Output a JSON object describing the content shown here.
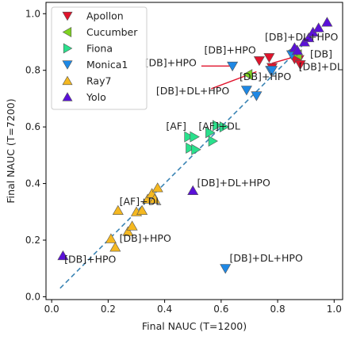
{
  "chart_data": {
    "type": "scatter",
    "title": "",
    "xlabel": "Final NAUC (T=1200)",
    "ylabel": "Final NAUC (T=7200)",
    "xlim": [
      -0.02,
      1.03
    ],
    "ylim": [
      -0.01,
      1.04
    ],
    "xticks": [
      0.0,
      0.2,
      0.4,
      0.6,
      0.8,
      1.0
    ],
    "yticks": [
      0.0,
      0.2,
      0.4,
      0.6,
      0.8,
      1.0
    ],
    "xtick_labels": [
      "0.0",
      "0.2",
      "0.4",
      "0.6",
      "0.8",
      "1.0"
    ],
    "ytick_labels": [
      "0.0",
      "0.2",
      "0.4",
      "0.6",
      "0.8",
      "1.0"
    ],
    "grid": false,
    "legend_position": "top-left",
    "reference_line": {
      "x": [
        0.03,
        0.98
      ],
      "y": [
        0.03,
        0.98
      ],
      "style": "dashed",
      "color": "#3a84b4"
    },
    "series": [
      {
        "name": "Apollon",
        "marker": "triangle-down",
        "color": "#e0142c",
        "points": [
          [
            0.735,
            0.834
          ],
          [
            0.77,
            0.845
          ],
          [
            0.875,
            0.838
          ],
          [
            0.86,
            0.84
          ],
          [
            0.88,
            0.82
          ],
          [
            0.78,
            0.81
          ]
        ]
      },
      {
        "name": "Cucumber",
        "marker": "triangle-left",
        "color": "#7ed321",
        "points": [
          [
            0.695,
            0.785
          ],
          [
            0.87,
            0.855
          ],
          [
            0.855,
            0.87
          ]
        ]
      },
      {
        "name": "Fiona",
        "marker": "triangle-right",
        "color": "#2ae08c",
        "points": [
          [
            0.485,
            0.565
          ],
          [
            0.505,
            0.565
          ],
          [
            0.49,
            0.525
          ],
          [
            0.51,
            0.52
          ],
          [
            0.56,
            0.58
          ],
          [
            0.585,
            0.605
          ],
          [
            0.61,
            0.6
          ],
          [
            0.57,
            0.55
          ]
        ]
      },
      {
        "name": "Monica1",
        "marker": "triangle-down",
        "color": "#1e88e5",
        "points": [
          [
            0.64,
            0.815
          ],
          [
            0.69,
            0.73
          ],
          [
            0.725,
            0.71
          ],
          [
            0.775,
            0.8
          ],
          [
            0.78,
            0.8
          ],
          [
            0.615,
            0.1
          ],
          [
            0.85,
            0.855
          ]
        ]
      },
      {
        "name": "Ray7",
        "marker": "triangle-up",
        "color": "#f5b820",
        "points": [
          [
            0.21,
            0.205
          ],
          [
            0.225,
            0.175
          ],
          [
            0.235,
            0.305
          ],
          [
            0.27,
            0.23
          ],
          [
            0.285,
            0.25
          ],
          [
            0.3,
            0.3
          ],
          [
            0.32,
            0.305
          ],
          [
            0.34,
            0.345
          ],
          [
            0.355,
            0.365
          ],
          [
            0.365,
            0.345
          ],
          [
            0.375,
            0.385
          ]
        ]
      },
      {
        "name": "Yolo",
        "marker": "triangle-up",
        "color": "#5a10d8",
        "points": [
          [
            0.04,
            0.145
          ],
          [
            0.5,
            0.375
          ],
          [
            0.86,
            0.88
          ],
          [
            0.87,
            0.87
          ],
          [
            0.895,
            0.9
          ],
          [
            0.91,
            0.915
          ],
          [
            0.925,
            0.935
          ],
          [
            0.945,
            0.95
          ],
          [
            0.975,
            0.97
          ]
        ]
      }
    ],
    "annotations": [
      {
        "text": "[DB]+DL+HPO",
        "x": 0.755,
        "y": 0.905
      },
      {
        "text": "[DB]+HPO",
        "x": 0.54,
        "y": 0.86
      },
      {
        "text": "[DB]",
        "x": 0.915,
        "y": 0.845
      },
      {
        "text": "[DB]+HPO",
        "x": 0.33,
        "y": 0.815
      },
      {
        "text": "[DB]+DL",
        "x": 0.875,
        "y": 0.8
      },
      {
        "text": "[DB]+HPO",
        "x": 0.665,
        "y": 0.765
      },
      {
        "text": "[DB]+DL+HPO",
        "x": 0.37,
        "y": 0.715
      },
      {
        "text": "[AF]",
        "x": 0.405,
        "y": 0.59
      },
      {
        "text": "[AF]+DL",
        "x": 0.52,
        "y": 0.59
      },
      {
        "text": "[DB]+DL+HPO",
        "x": 0.515,
        "y": 0.39
      },
      {
        "text": "[AF]+DL",
        "x": 0.24,
        "y": 0.325
      },
      {
        "text": "[DB]+HPO",
        "x": 0.24,
        "y": 0.195
      },
      {
        "text": "[DB]+HPO",
        "x": 0.045,
        "y": 0.12
      },
      {
        "text": "[DB]+DL+HPO",
        "x": 0.63,
        "y": 0.125
      }
    ],
    "annotation_lines": [
      {
        "x": [
          0.53,
          0.635
        ],
        "y": [
          0.815,
          0.815
        ],
        "color": "#e0142c"
      },
      {
        "x": [
          0.565,
          0.725
        ],
        "y": [
          0.735,
          0.795
        ],
        "color": "#e0142c"
      },
      {
        "x": [
          0.78,
          0.85
        ],
        "y": [
          0.825,
          0.845
        ],
        "color": "#e0142c"
      }
    ]
  }
}
